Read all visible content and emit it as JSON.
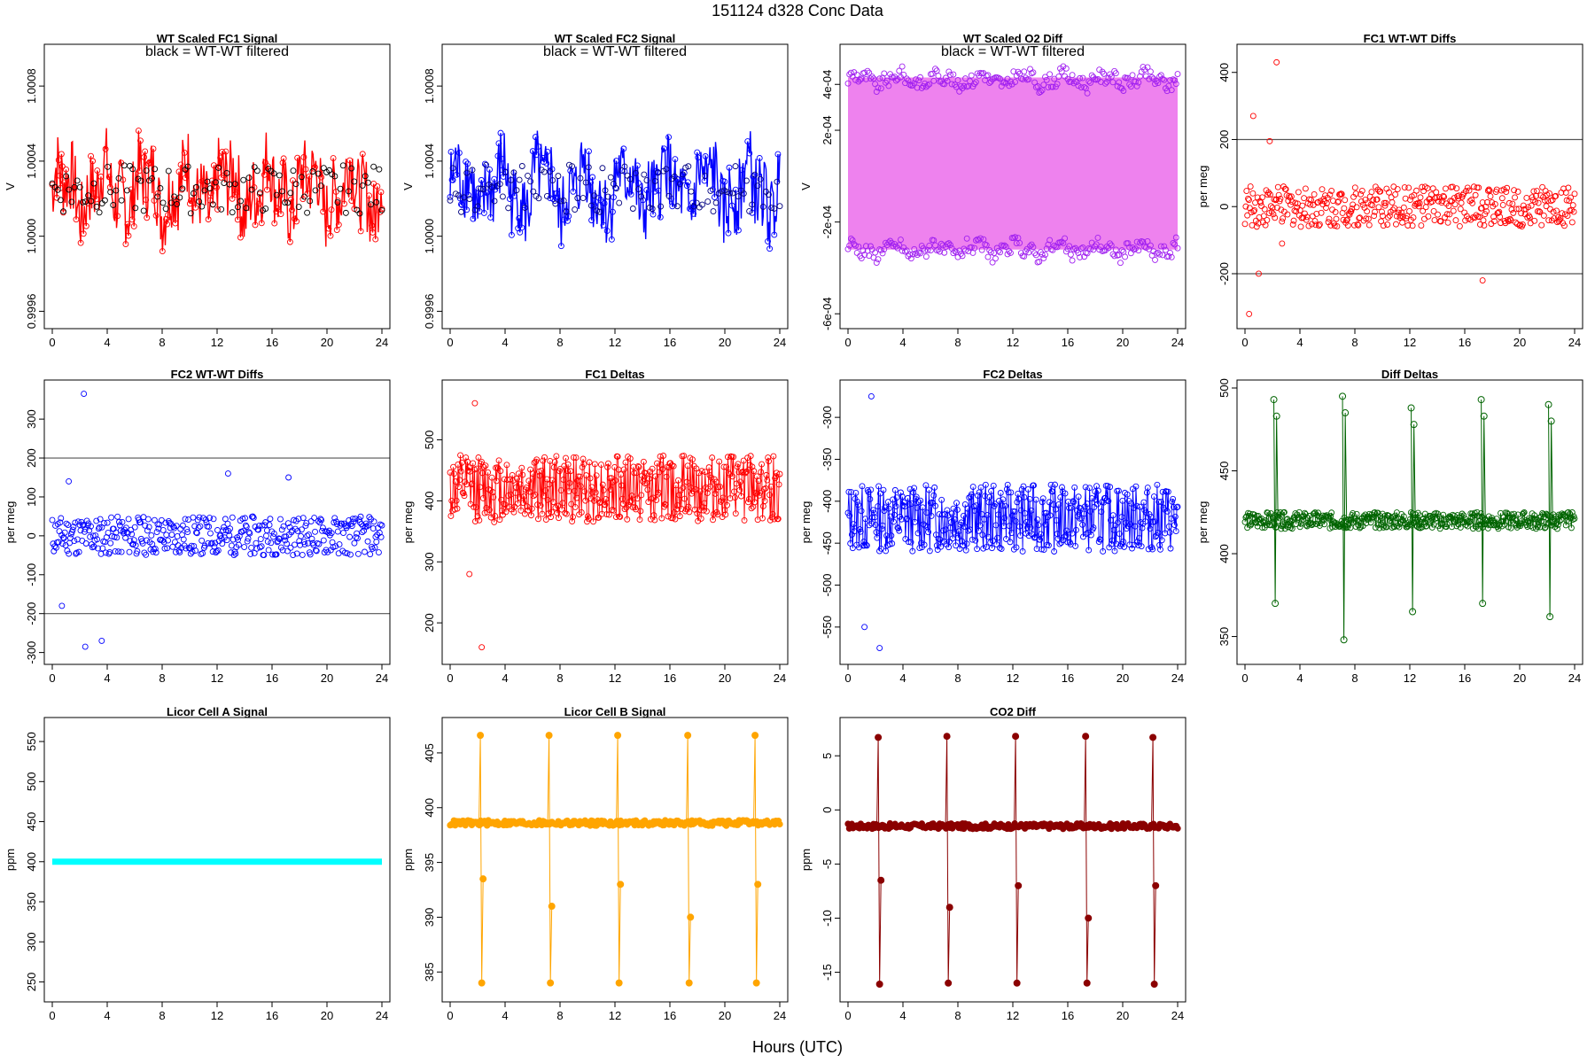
{
  "page": {
    "title": "151124   d328   Conc Data",
    "xlabel": "Hours (UTC)"
  },
  "chart_data": [
    {
      "type": "line",
      "title": "WT Scaled FC1 Signal",
      "annotation": "black = WT-WT filtered",
      "ylabel": "V",
      "xlim": [
        0,
        24
      ],
      "ylim": [
        0.99955,
        1.00098
      ],
      "xticks": [
        "0",
        "4",
        "8",
        "12",
        "16",
        "20",
        "24"
      ],
      "yticks": [
        {
          "v": 0.9996,
          "label": "0.9996"
        },
        {
          "v": 1.0,
          "label": "1.0000"
        },
        {
          "v": 1.0004,
          "label": "1.0004"
        },
        {
          "v": 1.0008,
          "label": "1.0008"
        }
      ],
      "series": [
        {
          "color": "#ff0000",
          "style": "band",
          "center": 1.00025,
          "amplitude": 0.0002,
          "wobble": 0.0001,
          "n": 360
        },
        {
          "color": "#000000",
          "style": "points",
          "center": 1.00025,
          "amplitude": 0.00013,
          "n": 120
        }
      ]
    },
    {
      "type": "line",
      "title": "WT Scaled FC2 Signal",
      "annotation": "black = WT-WT filtered",
      "ylabel": "V",
      "xlim": [
        0,
        24
      ],
      "ylim": [
        0.99955,
        1.00098
      ],
      "xticks": [
        "0",
        "4",
        "8",
        "12",
        "16",
        "20",
        "24"
      ],
      "yticks": [
        {
          "v": 0.9996,
          "label": "0.9996"
        },
        {
          "v": 1.0,
          "label": "1.0000"
        },
        {
          "v": 1.0004,
          "label": "1.0004"
        },
        {
          "v": 1.0008,
          "label": "1.0008"
        }
      ],
      "series": [
        {
          "color": "#0000ff",
          "style": "band",
          "center": 1.00025,
          "amplitude": 0.0002,
          "wobble": 0.0001,
          "n": 360
        },
        {
          "color": "#000080",
          "style": "points",
          "center": 1.00025,
          "amplitude": 0.00013,
          "n": 120
        }
      ]
    },
    {
      "type": "line",
      "title": "WT Scaled O2 Diff",
      "annotation": "black = WT-WT filtered",
      "ylabel": "V",
      "xlim": [
        0,
        24
      ],
      "ylim": [
        -0.00063,
        0.00054
      ],
      "xticks": [
        "0",
        "4",
        "8",
        "12",
        "16",
        "20",
        "24"
      ],
      "yticks": [
        {
          "v": -0.0006,
          "label": "-6e-04"
        },
        {
          "v": -0.0002,
          "label": "-2e-04"
        },
        {
          "v": 0.0002,
          "label": "2e-04"
        },
        {
          "v": 0.0004,
          "label": "4e-04"
        }
      ],
      "fill": {
        "color": "#ee82ee",
        "from": -0.00032,
        "to": 0.00043
      },
      "series": [
        {
          "color": "#a020f0",
          "style": "points",
          "center": 0.00042,
          "amplitude": 3e-05,
          "wobble": 2e-05,
          "n": 220
        },
        {
          "color": "#a020f0",
          "style": "points",
          "center": -0.00032,
          "amplitude": 3e-05,
          "wobble": 2e-05,
          "n": 220
        }
      ]
    },
    {
      "type": "scatter",
      "title": "FC1 WT-WT Diffs",
      "ylabel": "per meg",
      "xlim": [
        0,
        24
      ],
      "ylim": [
        -340,
        460
      ],
      "xticks": [
        "0",
        "4",
        "8",
        "12",
        "16",
        "20",
        "24"
      ],
      "yticks": [
        {
          "v": -200,
          "label": "-200"
        },
        {
          "v": 0,
          "label": "0"
        },
        {
          "v": 200,
          "label": "200"
        },
        {
          "v": 400,
          "label": "400"
        }
      ],
      "hlines": [
        -200,
        200
      ],
      "series": [
        {
          "color": "#ff0000",
          "style": "points",
          "center": 0,
          "amplitude": 60,
          "n": 420
        }
      ],
      "outliers": [
        [
          0.3,
          -320
        ],
        [
          0.6,
          270
        ],
        [
          1.0,
          -200
        ],
        [
          1.8,
          195
        ],
        [
          2.3,
          430
        ],
        [
          2.7,
          -110
        ],
        [
          17.3,
          -220
        ]
      ]
    },
    {
      "type": "scatter",
      "title": "FC2 WT-WT Diffs",
      "ylabel": "per meg",
      "xlim": [
        0,
        24
      ],
      "ylim": [
        -310,
        380
      ],
      "xticks": [
        "0",
        "4",
        "8",
        "12",
        "16",
        "20",
        "24"
      ],
      "yticks": [
        {
          "v": -300,
          "label": "-300"
        },
        {
          "v": -200,
          "label": "-200"
        },
        {
          "v": -100,
          "label": "-100"
        },
        {
          "v": 0,
          "label": "0"
        },
        {
          "v": 100,
          "label": "100"
        },
        {
          "v": 200,
          "label": "200"
        },
        {
          "v": 300,
          "label": "300"
        }
      ],
      "hlines": [
        -200,
        200
      ],
      "series": [
        {
          "color": "#0000ff",
          "style": "points",
          "center": 0,
          "amplitude": 50,
          "n": 420
        }
      ],
      "outliers": [
        [
          0.7,
          -180
        ],
        [
          1.2,
          140
        ],
        [
          2.3,
          365
        ],
        [
          2.4,
          -285
        ],
        [
          3.6,
          -270
        ],
        [
          12.8,
          160
        ],
        [
          17.2,
          150
        ]
      ]
    },
    {
      "type": "line",
      "title": "FC1 Deltas",
      "ylabel": "per meg",
      "xlim": [
        0,
        24
      ],
      "ylim": [
        145,
        585
      ],
      "xticks": [
        "0",
        "4",
        "8",
        "12",
        "16",
        "20",
        "24"
      ],
      "yticks": [
        {
          "v": 200,
          "label": "200"
        },
        {
          "v": 300,
          "label": "300"
        },
        {
          "v": 400,
          "label": "400"
        },
        {
          "v": 500,
          "label": "500"
        }
      ],
      "series": [
        {
          "color": "#ff0000",
          "style": "linepoints",
          "center": 420,
          "amplitude": 55,
          "n": 420
        }
      ],
      "outliers": [
        [
          1.8,
          560
        ],
        [
          2.3,
          160
        ],
        [
          1.4,
          280
        ]
      ]
    },
    {
      "type": "line",
      "title": "FC2 Deltas",
      "ylabel": "per meg",
      "xlim": [
        0,
        24
      ],
      "ylim": [
        -585,
        -265
      ],
      "xticks": [
        "0",
        "4",
        "8",
        "12",
        "16",
        "20",
        "24"
      ],
      "yticks": [
        {
          "v": -550,
          "label": "-550"
        },
        {
          "v": -500,
          "label": "-500"
        },
        {
          "v": -450,
          "label": "-450"
        },
        {
          "v": -400,
          "label": "-400"
        },
        {
          "v": -350,
          "label": "-350"
        },
        {
          "v": -300,
          "label": "-300"
        }
      ],
      "series": [
        {
          "color": "#0000ff",
          "style": "linepoints",
          "center": -420,
          "amplitude": 40,
          "n": 420
        }
      ],
      "outliers": [
        [
          1.7,
          -275
        ],
        [
          2.3,
          -575
        ],
        [
          1.2,
          -550
        ]
      ]
    },
    {
      "type": "line",
      "title": "Diff Deltas",
      "ylabel": "per meg",
      "xlim": [
        0,
        24
      ],
      "ylim": [
        338,
        500
      ],
      "xticks": [
        "0",
        "4",
        "8",
        "12",
        "16",
        "20",
        "24"
      ],
      "yticks": [
        {
          "v": 350,
          "label": "350"
        },
        {
          "v": 400,
          "label": "400"
        },
        {
          "v": 450,
          "label": "450"
        },
        {
          "v": 500,
          "label": "500"
        }
      ],
      "series": [
        {
          "color": "#006400",
          "style": "linepoints",
          "center": 420,
          "amplitude": 5,
          "n": 420
        }
      ],
      "spikes": [
        {
          "x": 2.2,
          "hi": 493,
          "lo": 370
        },
        {
          "x": 7.2,
          "hi": 495,
          "lo": 348
        },
        {
          "x": 12.2,
          "hi": 488,
          "lo": 365
        },
        {
          "x": 17.3,
          "hi": 493,
          "lo": 370
        },
        {
          "x": 22.2,
          "hi": 490,
          "lo": 362
        }
      ]
    },
    {
      "type": "line",
      "title": "Licor Cell A Signal",
      "ylabel": "ppm",
      "xlim": [
        0,
        24
      ],
      "ylim": [
        235,
        570
      ],
      "xticks": [
        "0",
        "4",
        "8",
        "12",
        "16",
        "20",
        "24"
      ],
      "yticks": [
        {
          "v": 250,
          "label": "250"
        },
        {
          "v": 300,
          "label": "300"
        },
        {
          "v": 350,
          "label": "350"
        },
        {
          "v": 400,
          "label": "400"
        },
        {
          "v": 450,
          "label": "450"
        },
        {
          "v": 500,
          "label": "500"
        },
        {
          "v": 550,
          "label": "550"
        }
      ],
      "series": [
        {
          "color": "#00ffff",
          "style": "flat",
          "center": 400,
          "amplitude": 0,
          "n": 1
        }
      ]
    },
    {
      "type": "line",
      "title": "Licor Cell B Signal",
      "ylabel": "ppm",
      "xlim": [
        0,
        24
      ],
      "ylim": [
        383,
        407.5
      ],
      "xticks": [
        "0",
        "4",
        "8",
        "12",
        "16",
        "20",
        "24"
      ],
      "yticks": [
        {
          "v": 385,
          "label": "385"
        },
        {
          "v": 390,
          "label": "390"
        },
        {
          "v": 395,
          "label": "395"
        },
        {
          "v": 400,
          "label": "400"
        },
        {
          "v": 405,
          "label": "405"
        }
      ],
      "series": [
        {
          "color": "#ffa500",
          "style": "dense",
          "center": 398.6,
          "amplitude": 0.25,
          "n": 260
        }
      ],
      "spikes": [
        {
          "x": 2.2,
          "hi": 406.6,
          "lo": 384.0,
          "mid": 393.5
        },
        {
          "x": 7.2,
          "hi": 406.6,
          "lo": 384.0,
          "mid": 391.0
        },
        {
          "x": 12.2,
          "hi": 406.6,
          "lo": 384.0,
          "mid": 393.0
        },
        {
          "x": 17.3,
          "hi": 406.6,
          "lo": 384.0,
          "mid": 390.0
        },
        {
          "x": 22.2,
          "hi": 406.6,
          "lo": 384.0,
          "mid": 393.0
        }
      ]
    },
    {
      "type": "line",
      "title": "CO2 Diff",
      "ylabel": "ppm",
      "xlim": [
        0,
        24
      ],
      "ylim": [
        -17,
        7.8
      ],
      "xticks": [
        "0",
        "4",
        "8",
        "12",
        "16",
        "20",
        "24"
      ],
      "yticks": [
        {
          "v": -15,
          "label": "-15"
        },
        {
          "v": -10,
          "label": "-10"
        },
        {
          "v": -5,
          "label": "-5"
        },
        {
          "v": 0,
          "label": "0"
        },
        {
          "v": 5,
          "label": "5"
        }
      ],
      "series": [
        {
          "color": "#8b0000",
          "style": "dense",
          "center": -1.5,
          "amplitude": 0.25,
          "n": 260
        }
      ],
      "spikes": [
        {
          "x": 2.2,
          "hi": 6.7,
          "lo": -16.1,
          "mid": -6.5
        },
        {
          "x": 7.2,
          "hi": 6.8,
          "lo": -16.0,
          "mid": -9.0
        },
        {
          "x": 12.2,
          "hi": 6.8,
          "lo": -16.0,
          "mid": -7.0
        },
        {
          "x": 17.3,
          "hi": 6.8,
          "lo": -16.0,
          "mid": -10.0
        },
        {
          "x": 22.2,
          "hi": 6.7,
          "lo": -16.1,
          "mid": -7.0
        }
      ]
    }
  ]
}
